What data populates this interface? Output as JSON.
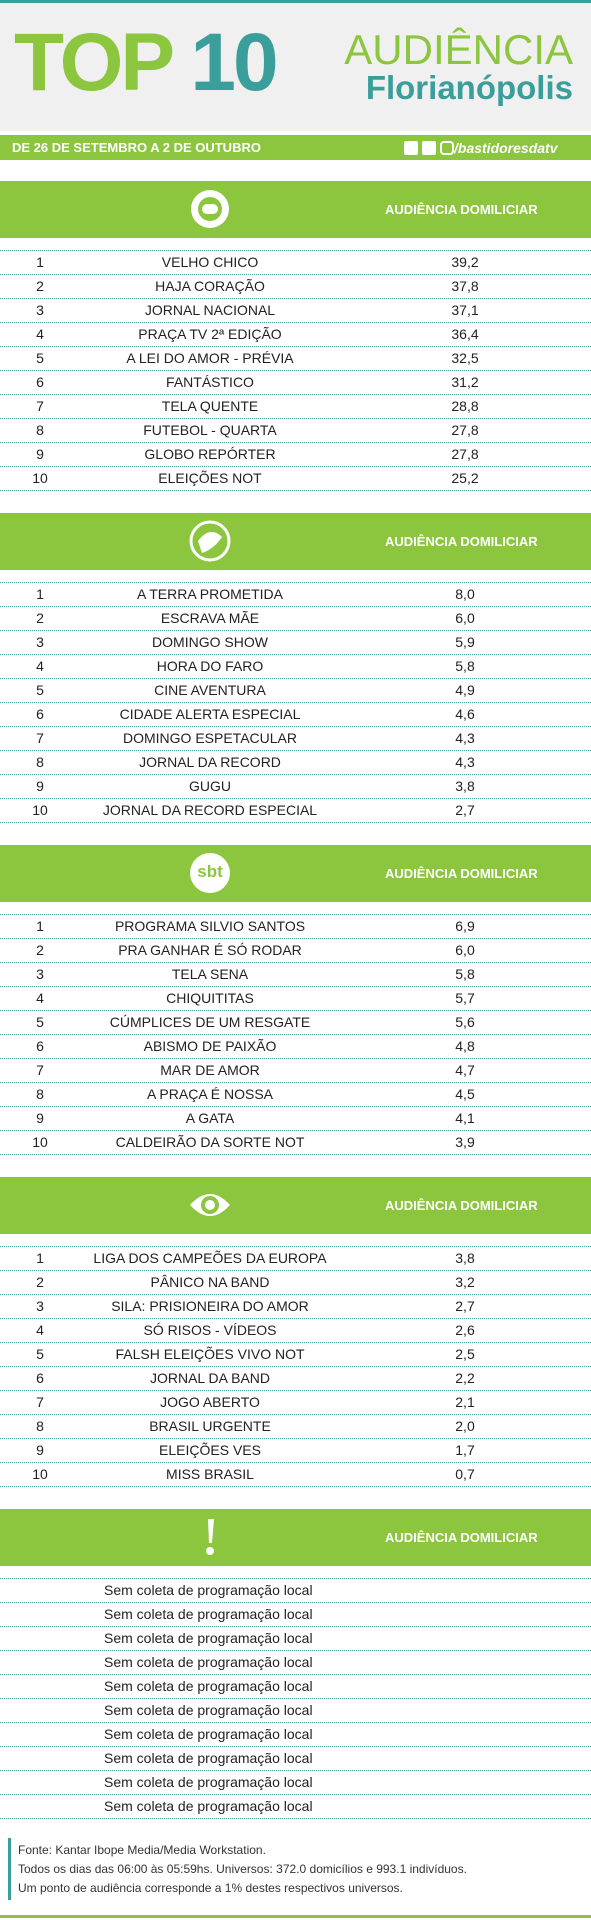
{
  "header": {
    "top": "TOP",
    "ten": "10",
    "audience": "AUDIÊNCIA",
    "city": "Florianópolis",
    "period": "DE 26 DE SETEMBRO A 2 DE OUTUBRO",
    "handle": "/bastidoresdatv"
  },
  "sections": [
    {
      "column": "AUDIÊNCIA DOMILICIAR",
      "rows": [
        [
          "1",
          "VELHO CHICO",
          "39,2"
        ],
        [
          "2",
          "HAJA CORAÇÃO",
          "37,8"
        ],
        [
          "3",
          "JORNAL NACIONAL",
          "37,1"
        ],
        [
          "4",
          "PRAÇA TV 2ª EDIÇÃO",
          "36,4"
        ],
        [
          "5",
          "A LEI DO AMOR - PRÉVIA",
          "32,5"
        ],
        [
          "6",
          "FANTÁSTICO",
          "31,2"
        ],
        [
          "7",
          "TELA QUENTE",
          "28,8"
        ],
        [
          "8",
          "FUTEBOL - QUARTA",
          "27,8"
        ],
        [
          "9",
          "GLOBO REPÓRTER",
          "27,8"
        ],
        [
          "10",
          "ELEIÇÕES NOT",
          "25,2"
        ]
      ]
    },
    {
      "column": "AUDIÊNCIA DOMILICIAR",
      "rows": [
        [
          "1",
          "A TERRA PROMETIDA",
          "8,0"
        ],
        [
          "2",
          "ESCRAVA MÃE",
          "6,0"
        ],
        [
          "3",
          "DOMINGO SHOW",
          "5,9"
        ],
        [
          "4",
          "HORA DO FARO",
          "5,8"
        ],
        [
          "5",
          "CINE AVENTURA",
          "4,9"
        ],
        [
          "6",
          "CIDADE ALERTA ESPECIAL",
          "4,6"
        ],
        [
          "7",
          "DOMINGO ESPETACULAR",
          "4,3"
        ],
        [
          "8",
          "JORNAL DA RECORD",
          "4,3"
        ],
        [
          "9",
          "GUGU",
          "3,8"
        ],
        [
          "10",
          "JORNAL DA RECORD ESPECIAL",
          "2,7"
        ]
      ]
    },
    {
      "logo": "sbt",
      "column": "AUDIÊNCIA DOMILICIAR",
      "rows": [
        [
          "1",
          "PROGRAMA SILVIO SANTOS",
          "6,9"
        ],
        [
          "2",
          "PRA GANHAR É SÓ RODAR",
          "6,0"
        ],
        [
          "3",
          "TELA SENA",
          "5,8"
        ],
        [
          "4",
          "CHIQUITITAS",
          "5,7"
        ],
        [
          "5",
          "CÚMPLICES DE UM RESGATE",
          "5,6"
        ],
        [
          "6",
          "ABISMO DE PAIXÃO",
          "4,8"
        ],
        [
          "7",
          "MAR DE AMOR",
          "4,7"
        ],
        [
          "8",
          "A PRAÇA É NOSSA",
          "4,5"
        ],
        [
          "9",
          "A GATA",
          "4,1"
        ],
        [
          "10",
          "CALDEIRÃO DA SORTE NOT",
          "3,9"
        ]
      ]
    },
    {
      "column": "AUDIÊNCIA DOMILICIAR",
      "rows": [
        [
          "1",
          "LIGA DOS CAMPEÕES DA EUROPA",
          "3,8"
        ],
        [
          "2",
          "PÂNICO NA BAND",
          "3,2"
        ],
        [
          "3",
          "SILA: PRISIONEIRA DO AMOR",
          "2,7"
        ],
        [
          "4",
          "SÓ RISOS - VÍDEOS",
          "2,6"
        ],
        [
          "5",
          "FALSH ELEIÇÕES VIVO NOT",
          "2,5"
        ],
        [
          "6",
          "JORNAL DA BAND",
          "2,2"
        ],
        [
          "7",
          "JOGO ABERTO",
          "2,1"
        ],
        [
          "8",
          "BRASIL URGENTE",
          "2,0"
        ],
        [
          "9",
          "ELEIÇÕES VES",
          "1,7"
        ],
        [
          "10",
          "MISS BRASIL",
          "0,7"
        ]
      ]
    },
    {
      "column": "AUDIÊNCIA DOMILICIAR",
      "rows": [
        [
          "Sem coleta de programação local"
        ],
        [
          "Sem coleta de programação local"
        ],
        [
          "Sem coleta de programação local"
        ],
        [
          "Sem coleta de programação local"
        ],
        [
          "Sem coleta de programação local"
        ],
        [
          "Sem coleta de programação local"
        ],
        [
          "Sem coleta de programação local"
        ],
        [
          "Sem coleta de programação local"
        ],
        [
          "Sem coleta de programação local"
        ],
        [
          "Sem coleta de programação local"
        ]
      ]
    }
  ],
  "footer": [
    "Fonte: Kantar Ibope Media/Media Workstation.",
    "Todos os dias das 06:00 às 05:59hs. Universos: 372.0 domicílios e 993.1 indivíduos.",
    "Um ponto de audiência corresponde a 1% destes respectivos universos."
  ]
}
